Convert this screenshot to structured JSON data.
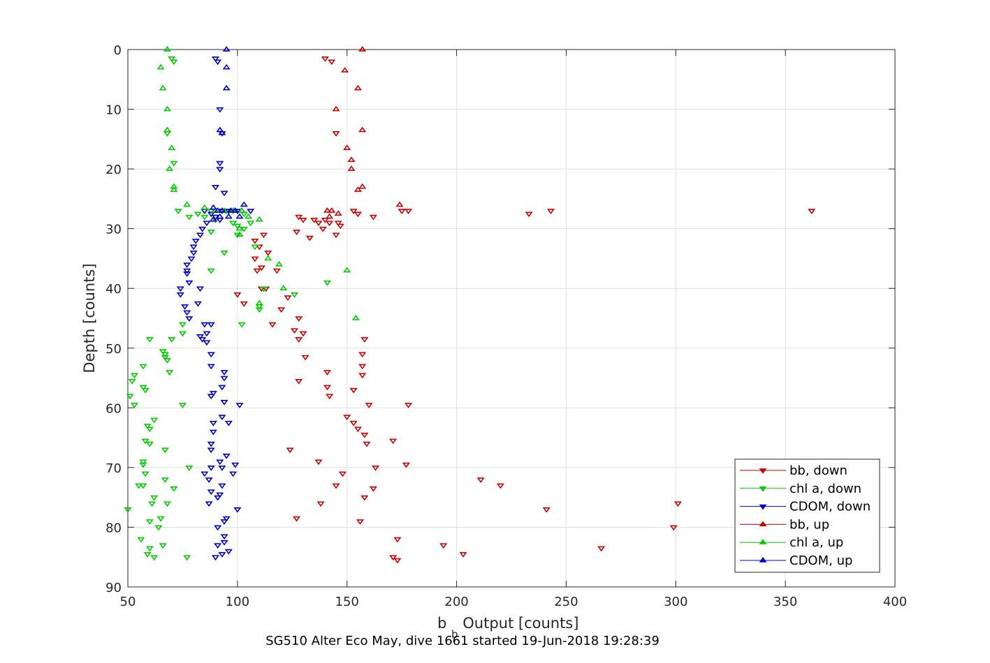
{
  "chart_data": {
    "type": "scatter",
    "title": "",
    "xlabel_main": "b",
    "xlabel_sub": "b",
    "xlabel_rest": " Output [counts]",
    "ylabel": "Depth [counts]",
    "caption": "SG510 Alter Eco May, dive 1661 started 19-Jun-2018 19:28:39",
    "xlim": [
      50,
      400
    ],
    "ylim": [
      0,
      90
    ],
    "y_reversed": true,
    "xticks": [
      50,
      100,
      150,
      200,
      250,
      300,
      350,
      400
    ],
    "yticks": [
      0,
      10,
      20,
      30,
      40,
      50,
      60,
      70,
      80,
      90
    ],
    "grid": true,
    "legend_position": "bottom-right",
    "series": [
      {
        "name": "bb, down",
        "color": "#cc0000",
        "marker": "triangle-down",
        "points": [
          [
            140,
            1.5
          ],
          [
            143,
            2
          ],
          [
            145,
            14
          ],
          [
            153,
            27
          ],
          [
            155,
            27.5
          ],
          [
            162,
            28
          ],
          [
            175,
            27
          ],
          [
            178,
            27
          ],
          [
            233,
            27.5
          ],
          [
            243,
            27
          ],
          [
            362,
            27
          ],
          [
            128,
            28
          ],
          [
            130,
            28.5
          ],
          [
            135,
            28.5
          ],
          [
            137,
            29
          ],
          [
            140,
            28.5
          ],
          [
            142,
            29
          ],
          [
            146,
            29
          ],
          [
            147,
            29.5
          ],
          [
            139,
            30
          ],
          [
            127,
            30.5
          ],
          [
            133,
            31.5
          ],
          [
            145,
            31
          ],
          [
            108,
            32
          ],
          [
            112,
            31
          ],
          [
            110,
            33
          ],
          [
            114,
            34
          ],
          [
            108,
            35
          ],
          [
            111,
            36.5
          ],
          [
            109,
            37
          ],
          [
            118,
            37
          ],
          [
            111,
            40
          ],
          [
            113,
            40
          ],
          [
            100,
            41
          ],
          [
            103,
            42.5
          ],
          [
            120,
            43.5
          ],
          [
            123,
            41.5
          ],
          [
            116,
            46
          ],
          [
            128,
            45
          ],
          [
            126,
            47
          ],
          [
            130,
            47.5
          ],
          [
            128,
            48.5
          ],
          [
            158,
            48.5
          ],
          [
            157,
            51
          ],
          [
            131,
            51.5
          ],
          [
            141,
            54
          ],
          [
            157,
            53
          ],
          [
            157,
            54.5
          ],
          [
            128,
            55.5
          ],
          [
            141,
            56.5
          ],
          [
            153,
            57
          ],
          [
            142,
            58
          ],
          [
            160,
            59.5
          ],
          [
            178,
            59.5
          ],
          [
            150,
            61.5
          ],
          [
            153,
            62.5
          ],
          [
            155,
            63.5
          ],
          [
            158,
            64.5
          ],
          [
            159,
            66
          ],
          [
            171,
            65.5
          ],
          [
            124,
            67
          ],
          [
            137,
            69
          ],
          [
            177,
            69.5
          ],
          [
            163,
            70
          ],
          [
            148,
            71
          ],
          [
            145,
            73
          ],
          [
            211,
            72
          ],
          [
            220,
            73
          ],
          [
            162,
            73.5
          ],
          [
            158,
            75
          ],
          [
            138,
            76
          ],
          [
            301,
            76
          ],
          [
            241,
            77
          ],
          [
            127,
            78.5
          ],
          [
            156,
            79
          ],
          [
            299,
            80
          ],
          [
            173,
            82
          ],
          [
            194,
            83
          ],
          [
            266,
            83.5
          ],
          [
            203,
            84.5
          ],
          [
            171,
            85
          ],
          [
            173,
            85.5
          ]
        ]
      },
      {
        "name": "chl a, down",
        "color": "#00cc00",
        "marker": "triangle-down",
        "points": [
          [
            70,
            1.5
          ],
          [
            71,
            2
          ],
          [
            68,
            14
          ],
          [
            71,
            19
          ],
          [
            73,
            27
          ],
          [
            82,
            27.5
          ],
          [
            88,
            27
          ],
          [
            95,
            27
          ],
          [
            98,
            27
          ],
          [
            103,
            27.5
          ],
          [
            78,
            28
          ],
          [
            85,
            28
          ],
          [
            90,
            28.5
          ],
          [
            98,
            29
          ],
          [
            100,
            29.5
          ],
          [
            106,
            29
          ],
          [
            103,
            30
          ],
          [
            100,
            31
          ],
          [
            88,
            30.5
          ],
          [
            108,
            33
          ],
          [
            94,
            34
          ],
          [
            88,
            37
          ],
          [
            126,
            41
          ],
          [
            141,
            39
          ],
          [
            112,
            40
          ],
          [
            110,
            43
          ],
          [
            110,
            43.5
          ],
          [
            102,
            46
          ],
          [
            75,
            46
          ],
          [
            75,
            47.5
          ],
          [
            70,
            48.5
          ],
          [
            60,
            48.5
          ],
          [
            67,
            51
          ],
          [
            67,
            51.5
          ],
          [
            68,
            52
          ],
          [
            66,
            50.5
          ],
          [
            69,
            54
          ],
          [
            57,
            53
          ],
          [
            53,
            54.5
          ],
          [
            52,
            55.5
          ],
          [
            57,
            56.5
          ],
          [
            58,
            57
          ],
          [
            51,
            58
          ],
          [
            53,
            59.5
          ],
          [
            75,
            59.5
          ],
          [
            62,
            62
          ],
          [
            59,
            63
          ],
          [
            60,
            63.5
          ],
          [
            58,
            65.5
          ],
          [
            60,
            66
          ],
          [
            67,
            67
          ],
          [
            57,
            69
          ],
          [
            57,
            69.5
          ],
          [
            78,
            70
          ],
          [
            58,
            71
          ],
          [
            55,
            73
          ],
          [
            57,
            73
          ],
          [
            67,
            72
          ],
          [
            71,
            73.5
          ],
          [
            62,
            75
          ],
          [
            61,
            76
          ],
          [
            68,
            76
          ],
          [
            50,
            77
          ],
          [
            65,
            78.5
          ],
          [
            60,
            79
          ],
          [
            64,
            80
          ],
          [
            56,
            82
          ],
          [
            66,
            83
          ],
          [
            60,
            83.5
          ],
          [
            59,
            84.5
          ],
          [
            62,
            85
          ],
          [
            77,
            85
          ]
        ]
      },
      {
        "name": "CDOM, down",
        "color": "#0000cc",
        "marker": "triangle-down",
        "points": [
          [
            90,
            1.5
          ],
          [
            91,
            2
          ],
          [
            92,
            10
          ],
          [
            93,
            14
          ],
          [
            92,
            19
          ],
          [
            92,
            20
          ],
          [
            90,
            23
          ],
          [
            94,
            24
          ],
          [
            85,
            27
          ],
          [
            88,
            27.5
          ],
          [
            93,
            27
          ],
          [
            96,
            27
          ],
          [
            100,
            27
          ],
          [
            106,
            27
          ],
          [
            90,
            28
          ],
          [
            92,
            28.5
          ],
          [
            86,
            29
          ],
          [
            84,
            30
          ],
          [
            83,
            31
          ],
          [
            81,
            32
          ],
          [
            80,
            33
          ],
          [
            80,
            34
          ],
          [
            79,
            35
          ],
          [
            77,
            36
          ],
          [
            77,
            37
          ],
          [
            77,
            37.5
          ],
          [
            78,
            39
          ],
          [
            74,
            40
          ],
          [
            74,
            41
          ],
          [
            83,
            40
          ],
          [
            82,
            42.5
          ],
          [
            76,
            43
          ],
          [
            77,
            44
          ],
          [
            78,
            45
          ],
          [
            85,
            46
          ],
          [
            88,
            46
          ],
          [
            86,
            47.5
          ],
          [
            83,
            48
          ],
          [
            84,
            48.5
          ],
          [
            86,
            49
          ],
          [
            88,
            51
          ],
          [
            88,
            53
          ],
          [
            94,
            54
          ],
          [
            94,
            55
          ],
          [
            93,
            56.5
          ],
          [
            89,
            57.5
          ],
          [
            88,
            58
          ],
          [
            94,
            59
          ],
          [
            101,
            59.5
          ],
          [
            93,
            61.5
          ],
          [
            89,
            62.5
          ],
          [
            96,
            62.5
          ],
          [
            89,
            64
          ],
          [
            88,
            66
          ],
          [
            88,
            67
          ],
          [
            95,
            68
          ],
          [
            92,
            69
          ],
          [
            88,
            70
          ],
          [
            85,
            71
          ],
          [
            93,
            70
          ],
          [
            99,
            69.5
          ],
          [
            98,
            71
          ],
          [
            87,
            72
          ],
          [
            93,
            73
          ],
          [
            88,
            74
          ],
          [
            92,
            74.5
          ],
          [
            91,
            75
          ],
          [
            87,
            76
          ],
          [
            100,
            77
          ],
          [
            95,
            78.5
          ],
          [
            94,
            79
          ],
          [
            91,
            80
          ],
          [
            94,
            81.5
          ],
          [
            94,
            82.5
          ],
          [
            91,
            83
          ],
          [
            93,
            84.5
          ],
          [
            96,
            84
          ],
          [
            90,
            85
          ]
        ]
      },
      {
        "name": "bb, up",
        "color": "#cc0000",
        "marker": "triangle-up",
        "points": [
          [
            157,
            0
          ],
          [
            149,
            3.5
          ],
          [
            155,
            6.5
          ],
          [
            145,
            10
          ],
          [
            157,
            13.5
          ],
          [
            150,
            16.5
          ],
          [
            152,
            18.5
          ],
          [
            152,
            20
          ],
          [
            157,
            23
          ],
          [
            155,
            23.5
          ],
          [
            174,
            26
          ],
          [
            141,
            27
          ],
          [
            143,
            27
          ],
          [
            146,
            27.5
          ],
          [
            142,
            28
          ]
        ]
      },
      {
        "name": "chl a, up",
        "color": "#00cc00",
        "marker": "triangle-up",
        "points": [
          [
            68,
            0
          ],
          [
            65,
            3
          ],
          [
            66,
            6.5
          ],
          [
            68,
            10
          ],
          [
            68,
            13.5
          ],
          [
            70,
            16.5
          ],
          [
            69,
            20
          ],
          [
            71,
            23
          ],
          [
            71,
            23.5
          ],
          [
            77,
            26
          ],
          [
            85,
            26.5
          ],
          [
            90,
            27
          ],
          [
            94,
            27
          ],
          [
            98,
            27
          ],
          [
            102,
            27
          ],
          [
            110,
            28.5
          ],
          [
            105,
            28
          ],
          [
            101,
            31
          ],
          [
            114,
            35
          ],
          [
            119,
            36
          ],
          [
            150,
            37
          ],
          [
            121,
            40
          ],
          [
            154,
            45
          ],
          [
            110,
            42.5
          ],
          [
            101,
            30
          ]
        ]
      },
      {
        "name": "CDOM, up",
        "color": "#0000cc",
        "marker": "triangle-up",
        "points": [
          [
            95,
            0
          ],
          [
            95,
            3
          ],
          [
            95,
            6.5
          ],
          [
            92,
            13.5
          ],
          [
            93,
            14
          ],
          [
            103,
            26
          ],
          [
            89,
            26.5
          ],
          [
            91,
            27
          ],
          [
            93,
            27
          ],
          [
            97,
            27
          ],
          [
            99,
            27
          ],
          [
            92,
            28
          ],
          [
            89,
            28.5
          ],
          [
            96,
            28
          ],
          [
            101,
            28
          ]
        ]
      }
    ]
  }
}
